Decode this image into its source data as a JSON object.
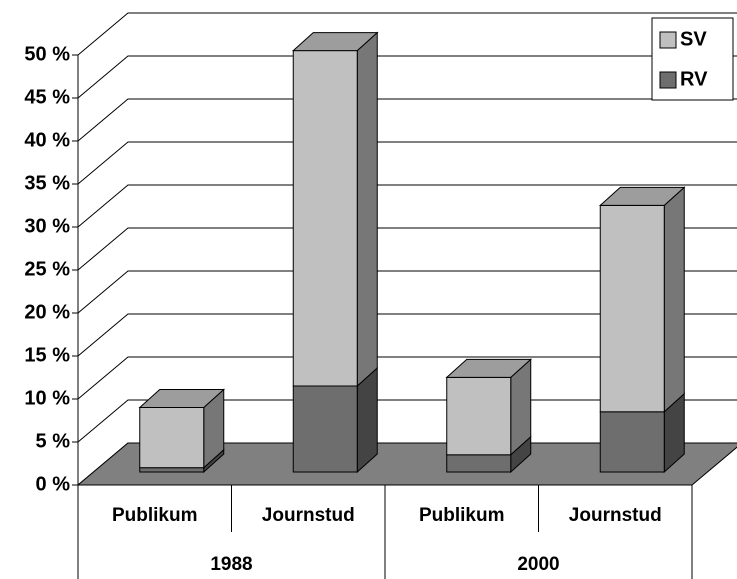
{
  "chart_data": {
    "type": "bar3d_stacked",
    "categories": [
      "Publikum",
      "Journstud",
      "Publikum",
      "Journstud"
    ],
    "groups": [
      "1988",
      "2000"
    ],
    "series": [
      {
        "name": "RV",
        "color": "#6e6e6e",
        "values": [
          0.5,
          10,
          2,
          7
        ]
      },
      {
        "name": "SV",
        "color": "#c0c0c0",
        "values": [
          7,
          39,
          9,
          24
        ]
      }
    ],
    "ylim": [
      0,
      50
    ],
    "yticks": [
      {
        "value": 0,
        "label": "0 %"
      },
      {
        "value": 5,
        "label": "5 %"
      },
      {
        "value": 10,
        "label": "10 %"
      },
      {
        "value": 15,
        "label": "15 %"
      },
      {
        "value": 20,
        "label": "20 %"
      },
      {
        "value": 25,
        "label": "25 %"
      },
      {
        "value": 30,
        "label": "30 %"
      },
      {
        "value": 35,
        "label": "35 %"
      },
      {
        "value": 40,
        "label": "40 %"
      },
      {
        "value": 45,
        "label": "45 %"
      },
      {
        "value": 50,
        "label": "50 %"
      }
    ],
    "grid": true
  }
}
